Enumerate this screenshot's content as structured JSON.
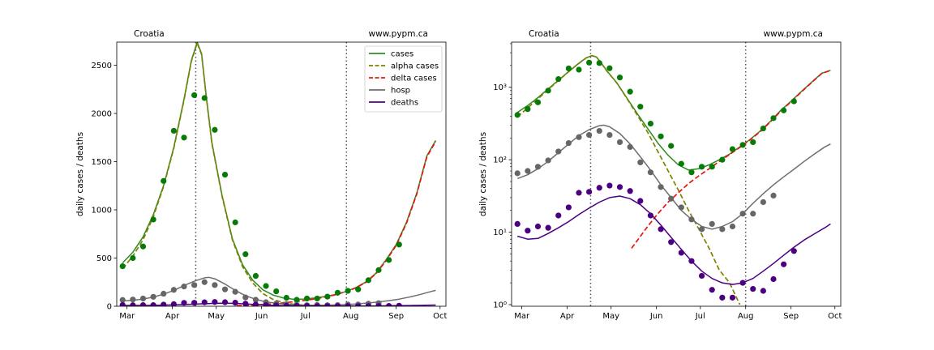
{
  "chart_data": [
    {
      "type": "line",
      "panel": "left",
      "title_left": "Croatia",
      "title_right": "www.pypm.ca",
      "xlabel": "",
      "ylabel": "daily cases / deaths",
      "yscale": "linear",
      "xlim": [
        "2021-02-22",
        "2021-10-05"
      ],
      "ylim": [
        0,
        2740
      ],
      "yticks": [
        0,
        500,
        1000,
        1500,
        2000,
        2500
      ],
      "ytick_labels": [
        "0",
        "500",
        "1000",
        "1500",
        "2000",
        "2500"
      ],
      "xticks": [
        "2021-03-01",
        "2021-04-01",
        "2021-05-01",
        "2021-06-01",
        "2021-07-01",
        "2021-08-01",
        "2021-09-01",
        "2021-10-01"
      ],
      "xtick_labels": [
        "Mar",
        "Apr",
        "May",
        "Jun",
        "Jul",
        "Aug",
        "Sep",
        "Oct"
      ],
      "vlines": [
        "2021-04-17",
        "2021-07-29"
      ],
      "legend": {
        "placement": "top-right",
        "entries": [
          "cases",
          "alpha cases",
          "delta cases",
          "hosp",
          "deaths"
        ]
      },
      "colors": {
        "cases": "#2e8b23",
        "alpha": "#808000",
        "delta": "#e8140e",
        "hosp": "#6e6e6e",
        "deaths": "#4b0082",
        "points_cases": "#077a07",
        "points_hosp": "#666666",
        "points_deaths": "#4b0082"
      },
      "series": [
        {
          "name": "cases",
          "style": "line",
          "x": [
            "2021-02-26",
            "2021-03-05",
            "2021-03-12",
            "2021-03-19",
            "2021-03-26",
            "2021-04-02",
            "2021-04-09",
            "2021-04-14",
            "2021-04-18",
            "2021-04-21",
            "2021-04-24",
            "2021-04-28",
            "2021-05-05",
            "2021-05-12",
            "2021-05-19",
            "2021-05-26",
            "2021-06-02",
            "2021-06-09",
            "2021-06-16",
            "2021-06-23",
            "2021-06-30",
            "2021-07-07",
            "2021-07-14",
            "2021-07-21",
            "2021-07-28",
            "2021-08-04",
            "2021-08-11",
            "2021-08-18",
            "2021-08-25",
            "2021-09-01",
            "2021-09-08",
            "2021-09-15",
            "2021-09-22",
            "2021-09-28"
          ],
          "y": [
            450,
            560,
            720,
            950,
            1250,
            1650,
            2150,
            2550,
            2740,
            2620,
            2200,
            1700,
            1150,
            700,
            430,
            270,
            170,
            115,
            85,
            72,
            75,
            85,
            100,
            120,
            150,
            190,
            250,
            340,
            480,
            640,
            870,
            1170,
            1560,
            1720
          ]
        },
        {
          "name": "alpha cases",
          "style": "dashed",
          "x": [
            "2021-02-26",
            "2021-03-05",
            "2021-03-12",
            "2021-03-19",
            "2021-03-26",
            "2021-04-02",
            "2021-04-09",
            "2021-04-14",
            "2021-04-18",
            "2021-04-21",
            "2021-04-24",
            "2021-04-28",
            "2021-05-05",
            "2021-05-12",
            "2021-05-19",
            "2021-05-26",
            "2021-06-02",
            "2021-06-09",
            "2021-06-16",
            "2021-06-23",
            "2021-06-30",
            "2021-07-07",
            "2021-07-14",
            "2021-07-21",
            "2021-07-28",
            "2021-08-04"
          ],
          "y": [
            390,
            520,
            690,
            930,
            1240,
            1640,
            2140,
            2540,
            2730,
            2610,
            2190,
            1690,
            1140,
            690,
            410,
            240,
            130,
            70,
            38,
            20,
            11,
            6,
            3,
            2,
            1,
            0
          ]
        },
        {
          "name": "delta cases",
          "style": "dashed",
          "x": [
            "2021-05-15",
            "2021-05-26",
            "2021-06-02",
            "2021-06-09",
            "2021-06-16",
            "2021-06-23",
            "2021-06-30",
            "2021-07-07",
            "2021-07-14",
            "2021-07-21",
            "2021-07-28",
            "2021-08-04",
            "2021-08-11",
            "2021-08-18",
            "2021-08-25",
            "2021-09-01",
            "2021-09-08",
            "2021-09-15",
            "2021-09-22",
            "2021-09-28"
          ],
          "y": [
            6,
            12,
            18,
            26,
            35,
            47,
            60,
            75,
            95,
            118,
            148,
            188,
            245,
            335,
            470,
            630,
            860,
            1160,
            1550,
            1710
          ]
        },
        {
          "name": "hosp",
          "style": "line",
          "x": [
            "2021-02-26",
            "2021-03-05",
            "2021-03-12",
            "2021-03-19",
            "2021-03-26",
            "2021-04-02",
            "2021-04-09",
            "2021-04-16",
            "2021-04-23",
            "2021-04-26",
            "2021-04-30",
            "2021-05-07",
            "2021-05-14",
            "2021-05-21",
            "2021-05-28",
            "2021-06-04",
            "2021-06-11",
            "2021-06-18",
            "2021-06-25",
            "2021-07-02",
            "2021-07-09",
            "2021-07-16",
            "2021-07-23",
            "2021-07-30",
            "2021-08-06",
            "2021-08-13",
            "2021-08-20",
            "2021-08-27",
            "2021-09-03",
            "2021-09-10",
            "2021-09-17",
            "2021-09-24",
            "2021-09-28"
          ],
          "y": [
            55,
            62,
            75,
            95,
            125,
            165,
            215,
            260,
            295,
            300,
            285,
            230,
            165,
            110,
            72,
            45,
            30,
            20,
            15,
            12,
            11,
            12,
            14,
            18,
            25,
            34,
            45,
            58,
            74,
            95,
            120,
            150,
            165
          ]
        },
        {
          "name": "deaths",
          "style": "line",
          "x": [
            "2021-02-26",
            "2021-03-05",
            "2021-03-12",
            "2021-03-19",
            "2021-03-26",
            "2021-04-02",
            "2021-04-09",
            "2021-04-16",
            "2021-04-23",
            "2021-04-30",
            "2021-05-07",
            "2021-05-14",
            "2021-05-21",
            "2021-05-28",
            "2021-06-04",
            "2021-06-11",
            "2021-06-18",
            "2021-06-25",
            "2021-07-02",
            "2021-07-09",
            "2021-07-16",
            "2021-07-23",
            "2021-07-30",
            "2021-08-06",
            "2021-08-13",
            "2021-08-20",
            "2021-08-27",
            "2021-09-03",
            "2021-09-10",
            "2021-09-17",
            "2021-09-24",
            "2021-09-28"
          ],
          "y": [
            8.8,
            8,
            8.2,
            9.6,
            11.5,
            14,
            17.5,
            21.5,
            26,
            30,
            31.5,
            29,
            24,
            18,
            12.5,
            8.5,
            5.8,
            4,
            2.9,
            2.3,
            2,
            1.9,
            2,
            2.3,
            2.9,
            3.7,
            4.8,
            6.2,
            7.8,
            9.5,
            11.5,
            13
          ]
        },
        {
          "name": "cases",
          "style": "points",
          "x": [
            "2021-02-26",
            "2021-03-05",
            "2021-03-12",
            "2021-03-19",
            "2021-03-26",
            "2021-04-02",
            "2021-04-09",
            "2021-04-16",
            "2021-04-23",
            "2021-04-30",
            "2021-05-07",
            "2021-05-14",
            "2021-05-21",
            "2021-05-28",
            "2021-06-04",
            "2021-06-11",
            "2021-06-18",
            "2021-06-25",
            "2021-07-02",
            "2021-07-09",
            "2021-07-16",
            "2021-07-23",
            "2021-07-30",
            "2021-08-06",
            "2021-08-13",
            "2021-08-20",
            "2021-08-27",
            "2021-09-03"
          ],
          "y": [
            415,
            500,
            620,
            900,
            1300,
            1820,
            1750,
            2190,
            2160,
            1830,
            1365,
            870,
            540,
            315,
            210,
            155,
            88,
            67,
            80,
            80,
            100,
            140,
            160,
            175,
            270,
            375,
            480,
            640
          ]
        },
        {
          "name": "hosp",
          "style": "points",
          "x": [
            "2021-02-26",
            "2021-03-05",
            "2021-03-12",
            "2021-03-19",
            "2021-03-26",
            "2021-04-02",
            "2021-04-09",
            "2021-04-16",
            "2021-04-23",
            "2021-04-30",
            "2021-05-07",
            "2021-05-14",
            "2021-05-21",
            "2021-05-28",
            "2021-06-04",
            "2021-06-11",
            "2021-06-18",
            "2021-06-25",
            "2021-07-02",
            "2021-07-09",
            "2021-07-16",
            "2021-07-23",
            "2021-07-30",
            "2021-08-06",
            "2021-08-13",
            "2021-08-20",
            "2021-08-27",
            "2021-09-03"
          ],
          "y": [
            65,
            70,
            80,
            98,
            130,
            170,
            205,
            220,
            250,
            220,
            175,
            150,
            92,
            67,
            42,
            29,
            22,
            15,
            11,
            13,
            11,
            12,
            18,
            18,
            26,
            32,
            null,
            null
          ]
        },
        {
          "name": "deaths",
          "style": "points",
          "x": [
            "2021-02-26",
            "2021-03-05",
            "2021-03-12",
            "2021-03-19",
            "2021-03-26",
            "2021-04-02",
            "2021-04-09",
            "2021-04-16",
            "2021-04-23",
            "2021-04-30",
            "2021-05-07",
            "2021-05-14",
            "2021-05-21",
            "2021-05-28",
            "2021-06-04",
            "2021-06-11",
            "2021-06-18",
            "2021-06-25",
            "2021-07-02",
            "2021-07-09",
            "2021-07-16",
            "2021-07-23",
            "2021-07-30",
            "2021-08-06",
            "2021-08-13",
            "2021-08-20",
            "2021-08-27",
            "2021-09-03"
          ],
          "y": [
            13,
            10.5,
            12,
            11.5,
            17,
            22,
            35,
            36,
            41,
            44,
            42,
            37,
            27,
            17,
            11,
            7.3,
            5.2,
            4,
            2.5,
            1.6,
            1.25,
            1.25,
            2,
            1.65,
            1.55,
            2.25,
            3.6,
            5.5
          ]
        }
      ]
    },
    {
      "type": "line",
      "panel": "right",
      "title_left": "Croatia",
      "title_right": "www.pypm.ca",
      "xlabel": "",
      "ylabel": "daily cases / deaths",
      "yscale": "log",
      "xlim": [
        "2021-02-22",
        "2021-10-05"
      ],
      "ylim": [
        0.95,
        4200
      ],
      "yticks": [
        1,
        10,
        100,
        1000
      ],
      "ytick_labels": [
        "10⁰",
        "10¹",
        "10²",
        "10³"
      ],
      "xticks": [
        "2021-03-01",
        "2021-04-01",
        "2021-05-01",
        "2021-06-01",
        "2021-07-01",
        "2021-08-01",
        "2021-09-01",
        "2021-10-01"
      ],
      "xtick_labels": [
        "Mar",
        "Apr",
        "May",
        "Jun",
        "Jul",
        "Aug",
        "Sep",
        "Oct"
      ],
      "vlines": [
        "2021-04-17",
        "2021-08-01"
      ],
      "legend": null,
      "series_ref": "same series as left panel"
    }
  ]
}
